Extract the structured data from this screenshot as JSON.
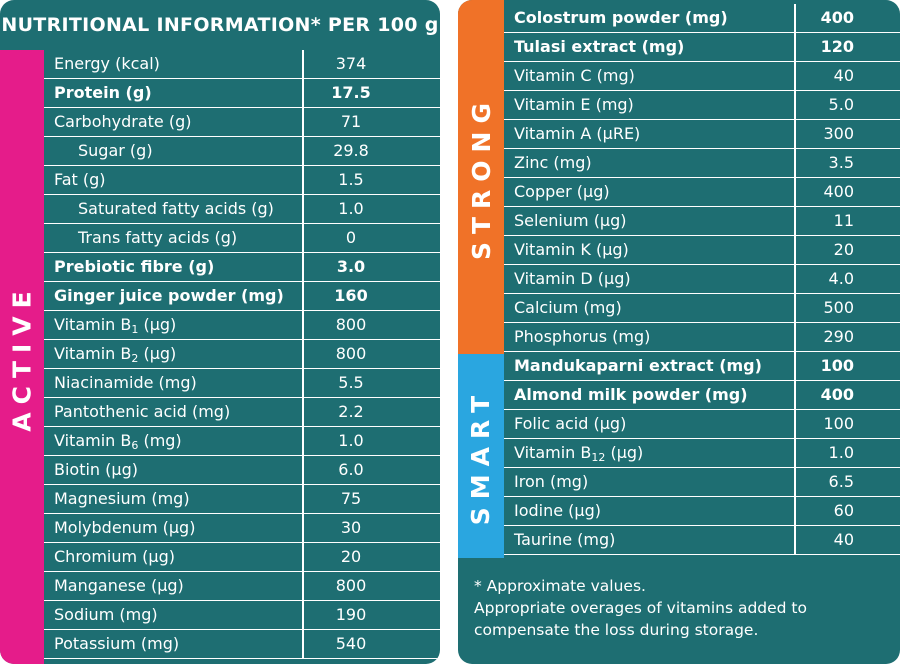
{
  "left": {
    "title": "NUTRITIONAL INFORMATION* PER 100 g",
    "band_label": "ACTIVE",
    "band_color": "#e51c8a",
    "rows": [
      {
        "name": "Energy (kcal)",
        "value": "374"
      },
      {
        "name": "Protein (g)",
        "value": "17.5",
        "bold": true
      },
      {
        "name": "Carbohydrate (g)",
        "value": "71"
      },
      {
        "name": "Sugar (g)",
        "value": "29.8",
        "indent": true
      },
      {
        "name": "Fat (g)",
        "value": "1.5"
      },
      {
        "name": "Saturated fatty acids (g)",
        "value": "1.0",
        "indent": true
      },
      {
        "name": "Trans fatty acids (g)",
        "value": "0",
        "indent": true
      },
      {
        "name": "Prebiotic fibre (g)",
        "value": "3.0",
        "bold": true
      },
      {
        "name": "Ginger juice powder (mg)",
        "value": "160",
        "bold": true
      },
      {
        "name": "Vitamin B",
        "sub": "1",
        "unit": " (μg)",
        "value": "800"
      },
      {
        "name": "Vitamin B",
        "sub": "2",
        "unit": " (μg)",
        "value": "800"
      },
      {
        "name": "Niacinamide (mg)",
        "value": "5.5"
      },
      {
        "name": "Pantothenic acid (mg)",
        "value": "2.2"
      },
      {
        "name": "Vitamin B",
        "sub": "6",
        "unit": " (mg)",
        "value": "1.0"
      },
      {
        "name": "Biotin (μg)",
        "value": "6.0"
      },
      {
        "name": "Magnesium (mg)",
        "value": "75"
      },
      {
        "name": "Molybdenum (μg)",
        "value": "30"
      },
      {
        "name": "Chromium (μg)",
        "value": "20"
      },
      {
        "name": "Manganese (μg)",
        "value": "800"
      },
      {
        "name": "Sodium (mg)",
        "value": "190"
      },
      {
        "name": "Potassium (mg)",
        "value": "540"
      }
    ]
  },
  "right": {
    "strong_label": "STRONG",
    "strong_color": "#f07228",
    "smart_label": "SMART",
    "smart_color": "#2aa6e0",
    "rows": [
      {
        "name": "Colostrum powder (mg)",
        "value": "400",
        "bold": true
      },
      {
        "name": "Tulasi extract (mg)",
        "value": "120",
        "bold": true
      },
      {
        "name": "Vitamin C (mg)",
        "value": "40"
      },
      {
        "name": "Vitamin E (mg)",
        "value": "5.0"
      },
      {
        "name": "Vitamin A (μRE)",
        "value": "300"
      },
      {
        "name": "Zinc (mg)",
        "value": "3.5"
      },
      {
        "name": "Copper (μg)",
        "value": "400"
      },
      {
        "name": "Selenium (μg)",
        "value": "11"
      },
      {
        "name": "Vitamin K (μg)",
        "value": "20"
      },
      {
        "name": "Vitamin D (μg)",
        "value": "4.0"
      },
      {
        "name": "Calcium (mg)",
        "value": "500"
      },
      {
        "name": "Phosphorus (mg)",
        "value": "290"
      },
      {
        "name": "Mandukaparni extract (mg)",
        "value": "100",
        "bold": true
      },
      {
        "name": "Almond milk powder (mg)",
        "value": "400",
        "bold": true
      },
      {
        "name": "Folic acid (μg)",
        "value": "100"
      },
      {
        "name": "Vitamin B",
        "sub": "12",
        "unit": " (μg)",
        "value": "1.0"
      },
      {
        "name": "Iron (mg)",
        "value": "6.5"
      },
      {
        "name": "Iodine (μg)",
        "value": "60"
      },
      {
        "name": "Taurine (mg)",
        "value": "40"
      }
    ],
    "footnote": [
      "* Approximate values.",
      "Appropriate overages of vitamins added to",
      "compensate the loss during storage."
    ]
  },
  "panel_color": "#1e6e72"
}
